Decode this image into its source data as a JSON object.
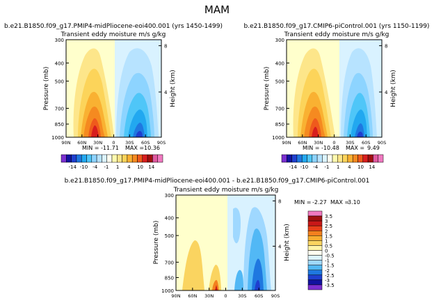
{
  "page_title": "MAM",
  "chart_data": [
    {
      "type": "contour",
      "title": "b.e21.B1850.f09_g17.PMIP4-midPliocene-eoi400.001 (yrs 1450-1499)",
      "subtitle": "Transient eddy moisture m/s g/kg",
      "xlabel": "",
      "ylabel": "Pressure (mb)",
      "ylabel_right": "Height (km)",
      "x_ticks": [
        "90N",
        "60N",
        "30N",
        "0",
        "30S",
        "60S",
        "90S"
      ],
      "y_ticks": [
        "300",
        "400",
        "500",
        "700",
        "850",
        "1000"
      ],
      "height_ticks": [
        "8",
        "4"
      ],
      "stats": {
        "min_label": "MIN =",
        "min": "-11.71",
        "max_label": "MAX =",
        "max": "10.36"
      },
      "range": {
        "min": -11.71,
        "max": 10.36
      }
    },
    {
      "type": "contour",
      "title": "b.e21.B1850.f09_g17.CMIP6-piControl.001 (yrs 1150-1199)",
      "subtitle": "Transient eddy moisture m/s g/kg",
      "xlabel": "",
      "ylabel": "Pressure (mb)",
      "ylabel_right": "Height (km)",
      "x_ticks": [
        "90N",
        "60N",
        "30N",
        "0",
        "30S",
        "60S",
        "90S"
      ],
      "y_ticks": [
        "300",
        "400",
        "500",
        "700",
        "850",
        "1000"
      ],
      "height_ticks": [
        "8",
        "4"
      ],
      "stats": {
        "min_label": "MIN =",
        "min": "-10.48",
        "max_label": "MAX =",
        "max": "9.49"
      },
      "range": {
        "min": -10.48,
        "max": 9.49
      }
    },
    {
      "type": "contour",
      "title": "b.e21.B1850.f09_g17.PMIP4-midPliocene-eoi400.001 - b.e21.B1850.f09_g17.CMIP6-piControl.001",
      "subtitle": "Transient eddy moisture m/s g/kg",
      "xlabel": "",
      "ylabel": "Pressure (mb)",
      "ylabel_right": "Height (km)",
      "x_ticks": [
        "90N",
        "60N",
        "30N",
        "0",
        "30S",
        "60S",
        "90S"
      ],
      "y_ticks": [
        "300",
        "400",
        "500",
        "700",
        "850",
        "1000"
      ],
      "height_ticks": [
        "8",
        "4"
      ],
      "stats": {
        "min_label": "MIN =",
        "min": "-2.27",
        "max_label": "MAX =",
        "max": "3.10"
      },
      "range": {
        "min": -2.27,
        "max": 3.1
      }
    }
  ],
  "colorbar_top": {
    "labels": [
      "-14",
      "-10",
      "-4",
      "-1",
      "1",
      "4",
      "10",
      "14"
    ],
    "colors": [
      "#7b2fd0",
      "#1212a0",
      "#1f3fcf",
      "#1f78e0",
      "#22a8f0",
      "#4fc6f8",
      "#8dd4ff",
      "#b7e3ff",
      "#dcf4ff",
      "#fffff0",
      "#fffbb0",
      "#fde68a",
      "#fcd45a",
      "#f9b132",
      "#f58a20",
      "#ef5a1c",
      "#d81e1e",
      "#a10f10",
      "#e05aa0",
      "#f079c0"
    ]
  },
  "colorbar_diff": {
    "labels": [
      "3.5",
      "3",
      "2.5",
      "2",
      "1.5",
      "1",
      "0.5",
      "0",
      "-0.5",
      "-1",
      "-1.5",
      "-2",
      "-2.5",
      "-3",
      "-3.5"
    ],
    "colors": [
      "#f079c0",
      "#a10f10",
      "#c81818",
      "#e8401a",
      "#f3801e",
      "#f7ad30",
      "#fad460",
      "#fff4a8",
      "#fffff0",
      "#dcf4ff",
      "#9fd8ff",
      "#52b8f5",
      "#1f78e0",
      "#1f3fcf",
      "#1212a0",
      "#7b2fd0"
    ]
  },
  "colors": {
    "warm_bg": "#ffffcc",
    "cold_bg": "#d9f2ff"
  }
}
